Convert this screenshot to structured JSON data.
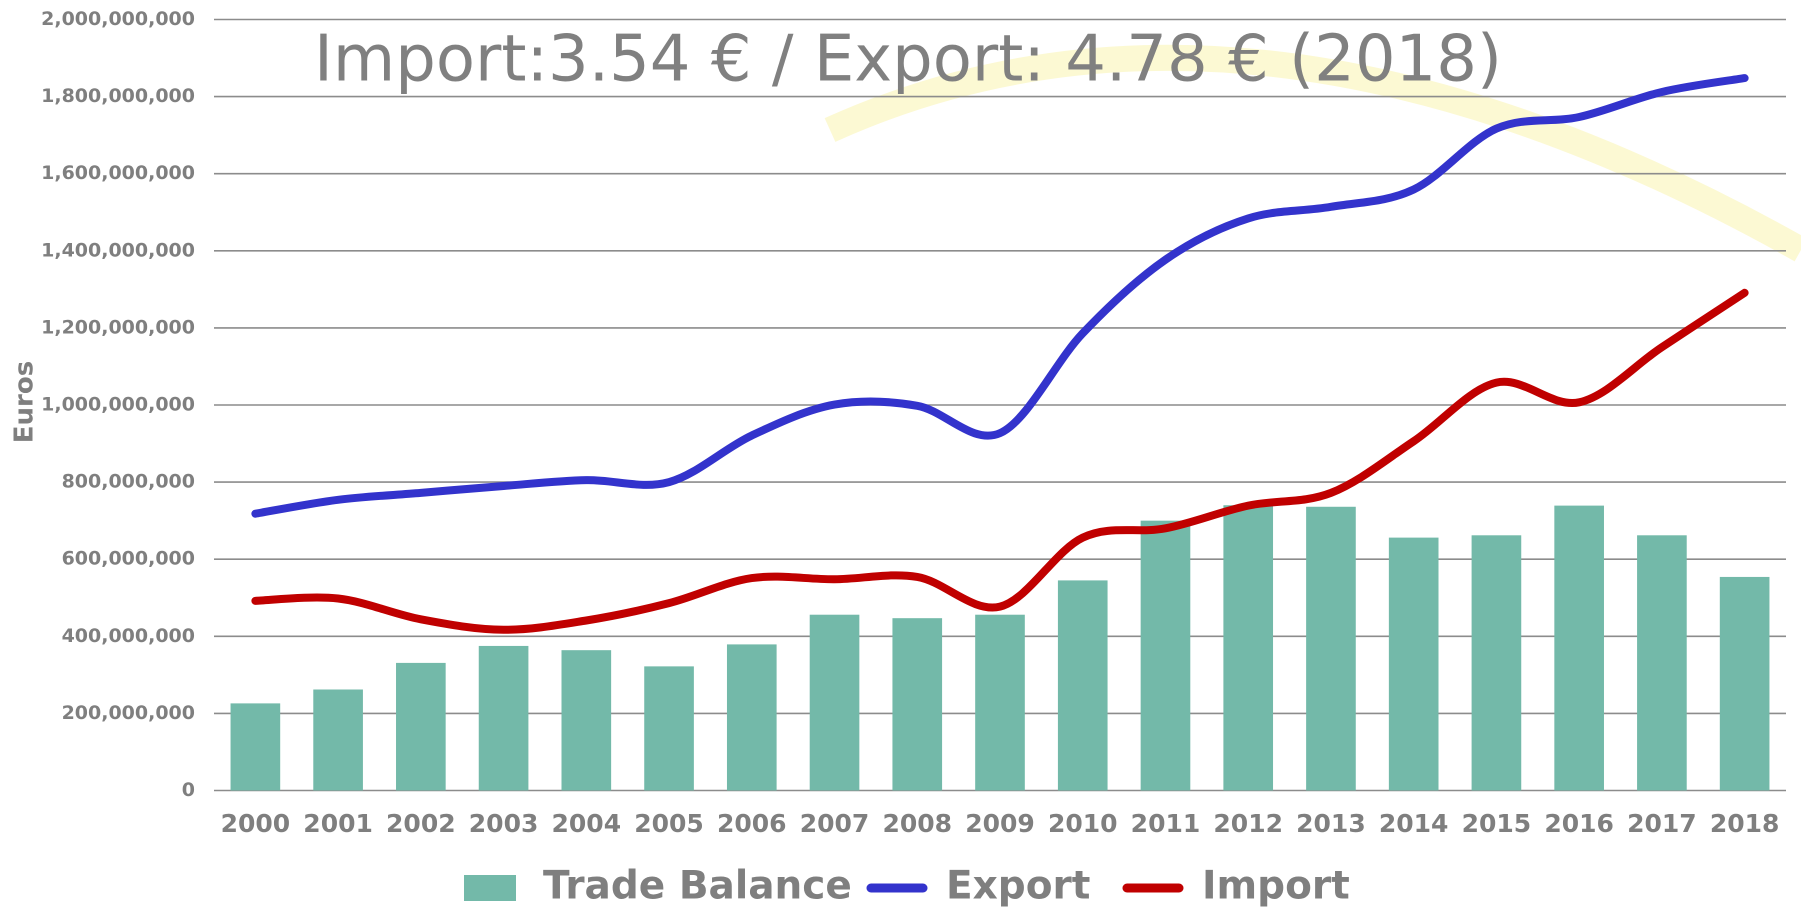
{
  "chart_data": {
    "type": "bar-line",
    "title": "Import:3.54 € / Export: 4.78 € (2018)",
    "y_label": "Euros",
    "categories": [
      "2000",
      "2001",
      "2002",
      "2003",
      "2004",
      "2005",
      "2006",
      "2007",
      "2008",
      "2009",
      "2010",
      "2011",
      "2012",
      "2013",
      "2014",
      "2015",
      "2016",
      "2017",
      "2018"
    ],
    "series": [
      {
        "name": "Trade Balance",
        "type": "bar",
        "color": "#73b9a9",
        "values": [
          226000000,
          262000000,
          331000000,
          375000000,
          364000000,
          322000000,
          379000000,
          456000000,
          447000000,
          456000000,
          545000000,
          700000000,
          740000000,
          736000000,
          656000000,
          662000000,
          739000000,
          662000000,
          554000000
        ]
      },
      {
        "name": "Export",
        "type": "line",
        "color": "#3333cc",
        "values": [
          718000000,
          754000000,
          772000000,
          790000000,
          805000000,
          800000000,
          921000000,
          1001000000,
          998000000,
          927000000,
          1186000000,
          1377000000,
          1484000000,
          1514000000,
          1559000000,
          1717000000,
          1747000000,
          1812000000,
          1848000000
        ]
      },
      {
        "name": "Import",
        "type": "line",
        "color": "#c00000",
        "values": [
          492000000,
          498000000,
          444000000,
          417000000,
          441000000,
          486000000,
          551000000,
          548000000,
          554000000,
          477000000,
          656000000,
          680000000,
          739000000,
          772000000,
          906000000,
          1058000000,
          1007000000,
          1150000000,
          1291000000
        ]
      }
    ],
    "ylim": [
      0,
      2000000000
    ],
    "yticks": [
      0,
      {
        "value": 200000000,
        "label": "200,000,000"
      },
      {
        "value": 400000000,
        "label": "400,000,000"
      },
      {
        "value": 600000000,
        "label": "600,000,000"
      },
      {
        "value": 800000000,
        "label": "800,000,000"
      },
      {
        "value": 1000000000,
        "label": "1,000,000,000"
      },
      {
        "value": 1200000000,
        "label": "1,200,000,000"
      },
      {
        "value": 1400000000,
        "label": "1,400,000,000"
      },
      {
        "value": 1600000000,
        "label": "1,600,000,000"
      },
      {
        "value": 1800000000,
        "label": "1,800,000,000"
      },
      {
        "value": 2000000000,
        "label": "2,000,000,000"
      }
    ],
    "grid": true,
    "legend": "bottom"
  }
}
